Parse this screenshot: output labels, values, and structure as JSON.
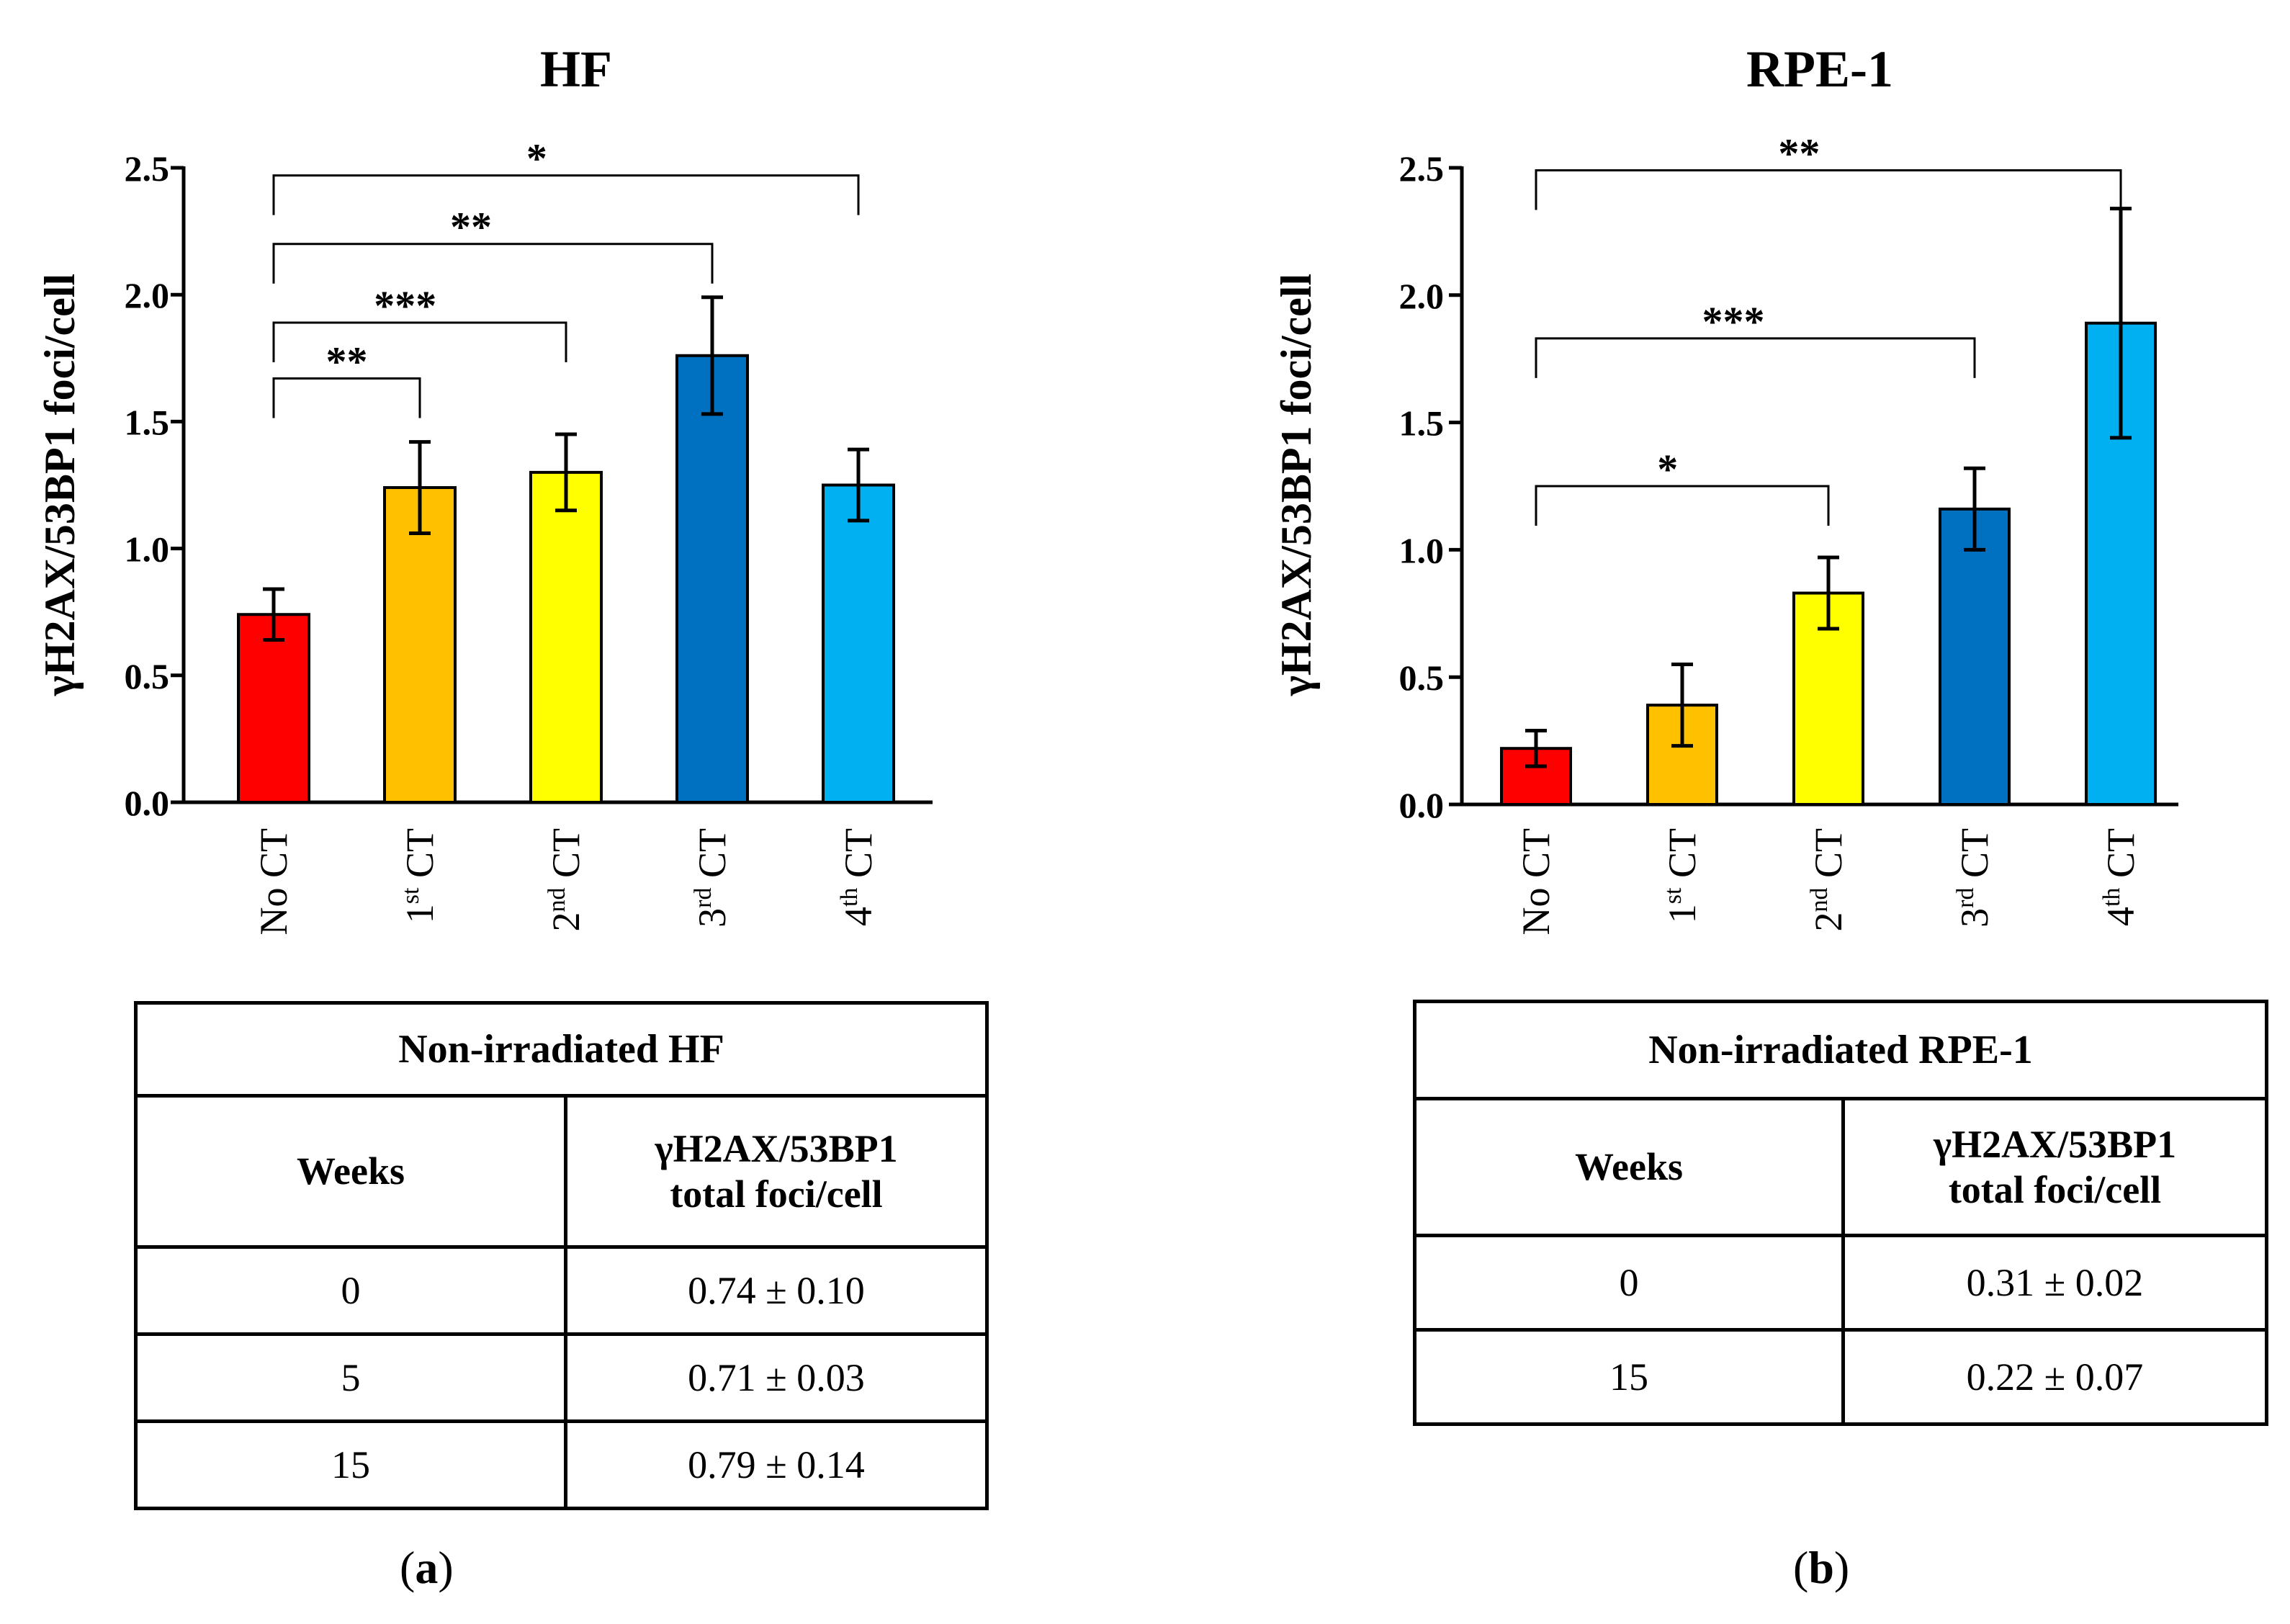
{
  "chart_data": [
    {
      "type": "bar",
      "panel": "a",
      "title": "HF",
      "ylabel": "γH2AX/53BP1 foci/cell",
      "xlabel": "",
      "ylim": [
        0,
        2.5
      ],
      "yticks": [
        "0.0",
        "0.5",
        "1.0",
        "1.5",
        "2.0",
        "2.5"
      ],
      "categories": [
        {
          "base": "No CT",
          "sup": "",
          "rest": ""
        },
        {
          "base": "1",
          "sup": "st",
          "rest": " CT"
        },
        {
          "base": "2",
          "sup": "nd",
          "rest": " CT"
        },
        {
          "base": "3",
          "sup": "rd",
          "rest": " CT"
        },
        {
          "base": "4",
          "sup": "th",
          "rest": " CT"
        }
      ],
      "values": [
        0.74,
        1.24,
        1.3,
        1.76,
        1.25
      ],
      "errors": [
        0.1,
        0.18,
        0.15,
        0.23,
        0.14
      ],
      "colors": [
        "#ff0000",
        "#ffc000",
        "#ffff00",
        "#0070c0",
        "#00b0f0"
      ],
      "significance": [
        {
          "from": 0,
          "to": 1,
          "label": "**",
          "level": 1.67
        },
        {
          "from": 0,
          "to": 2,
          "label": "***",
          "level": 1.89
        },
        {
          "from": 0,
          "to": 3,
          "label": "**",
          "level": 2.2
        },
        {
          "from": 0,
          "to": 4,
          "label": "*",
          "level": 2.47
        }
      ]
    },
    {
      "type": "bar",
      "panel": "b",
      "title": "RPE-1",
      "ylabel": "γH2AX/53BP1 foci/cell",
      "xlabel": "",
      "ylim": [
        0,
        2.5
      ],
      "yticks": [
        "0.0",
        "0.5",
        "1.0",
        "1.5",
        "2.0",
        "2.5"
      ],
      "categories": [
        {
          "base": "No CT",
          "sup": "",
          "rest": ""
        },
        {
          "base": "1",
          "sup": "st",
          "rest": " CT"
        },
        {
          "base": "2",
          "sup": "nd",
          "rest": " CT"
        },
        {
          "base": "3",
          "sup": "rd",
          "rest": " CT"
        },
        {
          "base": "4",
          "sup": "th",
          "rest": " CT"
        }
      ],
      "values": [
        0.22,
        0.39,
        0.83,
        1.16,
        1.89
      ],
      "errors": [
        0.07,
        0.16,
        0.14,
        0.16,
        0.45
      ],
      "colors": [
        "#ff0000",
        "#ffc000",
        "#ffff00",
        "#0070c0",
        "#00b0f0"
      ],
      "significance": [
        {
          "from": 0,
          "to": 2,
          "label": "*",
          "level": 1.25
        },
        {
          "from": 0,
          "to": 3,
          "label": "***",
          "level": 1.83
        },
        {
          "from": 0,
          "to": 4,
          "label": "**",
          "level": 2.49
        }
      ]
    }
  ],
  "tables": [
    {
      "title": "Non-irradiated HF",
      "col1": "Weeks",
      "col2_line1": "γH2AX/53BP1",
      "col2_line2": "total foci/cell",
      "rows": [
        {
          "weeks": "0",
          "value": "0.74 ± 0.10"
        },
        {
          "weeks": "5",
          "value": "0.71 ± 0.03"
        },
        {
          "weeks": "15",
          "value": "0.79 ± 0.14"
        }
      ]
    },
    {
      "title": "Non-irradiated RPE-1",
      "col1": "Weeks",
      "col2_line1": "γH2AX/53BP1",
      "col2_line2": "total foci/cell",
      "rows": [
        {
          "weeks": "0",
          "value": "0.31 ± 0.02"
        },
        {
          "weeks": "15",
          "value": "0.22 ± 0.07"
        }
      ]
    }
  ],
  "panel_labels": {
    "a": "a",
    "b": "b"
  }
}
